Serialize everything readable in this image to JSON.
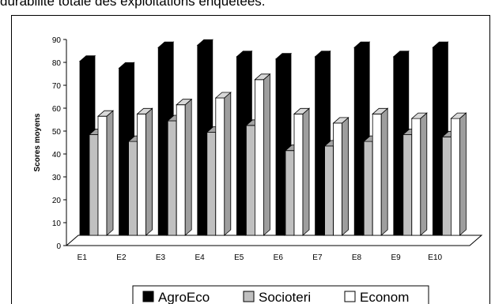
{
  "caption": "durabilité totale des exploitations enquêtées.",
  "chart_data": {
    "type": "bar",
    "title": "",
    "xlabel": "",
    "ylabel": "Scores moyens",
    "ylim": [
      0,
      90
    ],
    "yticks": [
      0,
      10,
      20,
      30,
      40,
      50,
      60,
      70,
      80,
      90
    ],
    "categories": [
      "E1",
      "E2",
      "E3",
      "E4",
      "E5",
      "E6",
      "E7",
      "E8",
      "E9",
      "E10"
    ],
    "series": [
      {
        "name": "AgroEco",
        "color": "#000000",
        "values": [
          76,
          73,
          82,
          83,
          78,
          77,
          78,
          82,
          78,
          82
        ]
      },
      {
        "name": "Socioteri",
        "color": "#c0c0c0",
        "values": [
          44,
          41,
          50,
          45,
          48,
          37,
          39,
          41,
          44,
          43
        ]
      },
      {
        "name": "Econom",
        "color": "#ffffff",
        "values": [
          52,
          53,
          57,
          60,
          68,
          53,
          49,
          53,
          51,
          51
        ]
      }
    ],
    "legend": "bottom",
    "grid": false,
    "style": "3d-bars"
  }
}
